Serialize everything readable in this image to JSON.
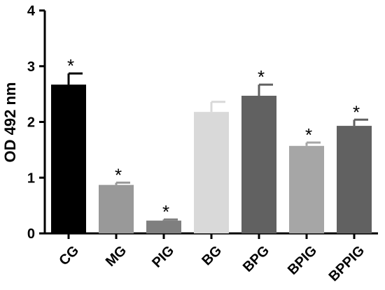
{
  "chart_data": {
    "type": "bar",
    "title": "",
    "xlabel": "",
    "ylabel": "OD 492 nm",
    "ylim": [
      0,
      4
    ],
    "yticks": [
      "0",
      "1",
      "2",
      "3",
      "4"
    ],
    "grid": false,
    "categories": [
      "CG",
      "MG",
      "PIG",
      "BG",
      "BPG",
      "BPIG",
      "BPPIG"
    ],
    "values": [
      2.67,
      0.87,
      0.23,
      2.18,
      2.47,
      1.57,
      1.93
    ],
    "errors": [
      0.2,
      0.04,
      0.02,
      0.18,
      0.2,
      0.06,
      0.11
    ],
    "significance": [
      "*",
      "*",
      "*",
      "",
      "*",
      "*",
      "*"
    ],
    "colors": [
      "#000000",
      "#999999",
      "#7f7f7f",
      "#d9d9d9",
      "#616161",
      "#a6a6a6",
      "#616161"
    ]
  }
}
